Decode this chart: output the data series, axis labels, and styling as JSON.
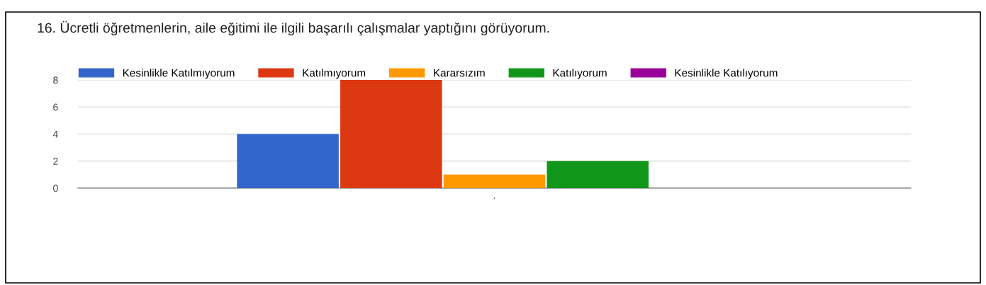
{
  "chart_data": {
    "type": "bar",
    "title": "16. Ücretli öğretmenlerin, aile eğitimi ile ilgili başarılı çalışmalar yaptığını görüyorum.",
    "categories": [
      "."
    ],
    "series": [
      {
        "name": "Kesinlikle Katılmıyorum",
        "color": "#3366cc",
        "values": [
          4
        ]
      },
      {
        "name": "Katılmıyorum",
        "color": "#dc3912",
        "values": [
          8
        ]
      },
      {
        "name": "Kararsızım",
        "color": "#ff9900",
        "values": [
          1
        ]
      },
      {
        "name": "Katılıyorum",
        "color": "#109618",
        "values": [
          2
        ]
      },
      {
        "name": "Kesinlikle Katılıyorum",
        "color": "#990099",
        "values": [
          0
        ]
      }
    ],
    "ylim": [
      0,
      8
    ],
    "yticks": [
      0,
      2,
      4,
      6,
      8
    ],
    "grid": "y",
    "legend": "top"
  }
}
